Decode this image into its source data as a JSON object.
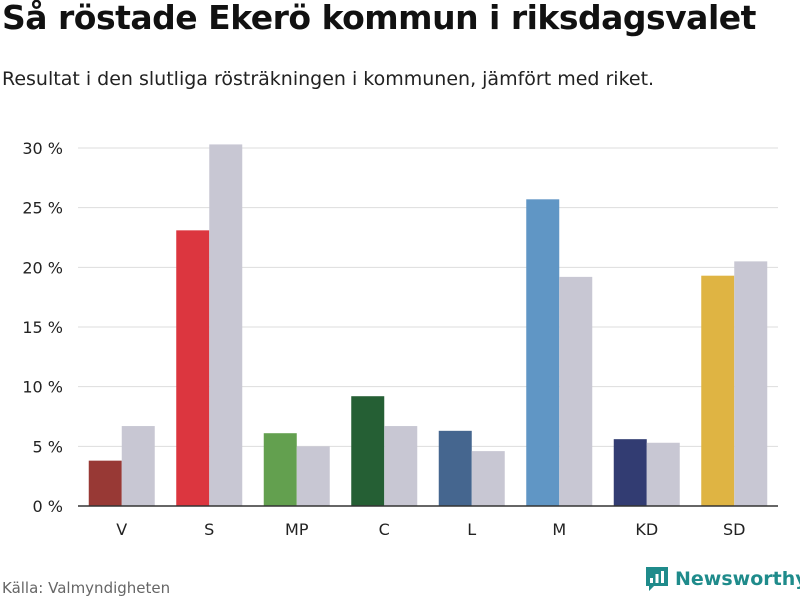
{
  "title": "Så röstade Ekerö kommun i riksdagsvalet",
  "subtitle": "Resultat i den slutliga rösträkningen i kommunen, jämfört med riket.",
  "source": "Källa: Valmyndigheten",
  "brand": "Newsworthy",
  "colors": {
    "comparison": "#c8c7d3",
    "grid": "#dddddd",
    "axis": "#333333",
    "brand": "#1f8b8b"
  },
  "chart_data": {
    "type": "bar",
    "categories": [
      "V",
      "S",
      "MP",
      "C",
      "L",
      "M",
      "KD",
      "SD"
    ],
    "series": [
      {
        "values": [
          3.8,
          23.1,
          6.1,
          9.2,
          6.3,
          25.7,
          5.6,
          19.3
        ],
        "colors": [
          "#983935",
          "#dc363f",
          "#63a04f",
          "#255f34",
          "#45668f",
          "#6096c5",
          "#323c72",
          "#dfb443"
        ]
      },
      {
        "values": [
          6.7,
          30.3,
          5.0,
          6.7,
          4.6,
          19.2,
          5.3,
          20.5
        ],
        "color": "#c8c7d3"
      }
    ],
    "ylim": [
      0,
      30
    ],
    "yticks": [
      0,
      5,
      10,
      15,
      20,
      25,
      30
    ],
    "ytick_labels": [
      "0 %",
      "5 %",
      "10 %",
      "15 %",
      "20 %",
      "25 %",
      "30 %"
    ],
    "grid": true
  }
}
